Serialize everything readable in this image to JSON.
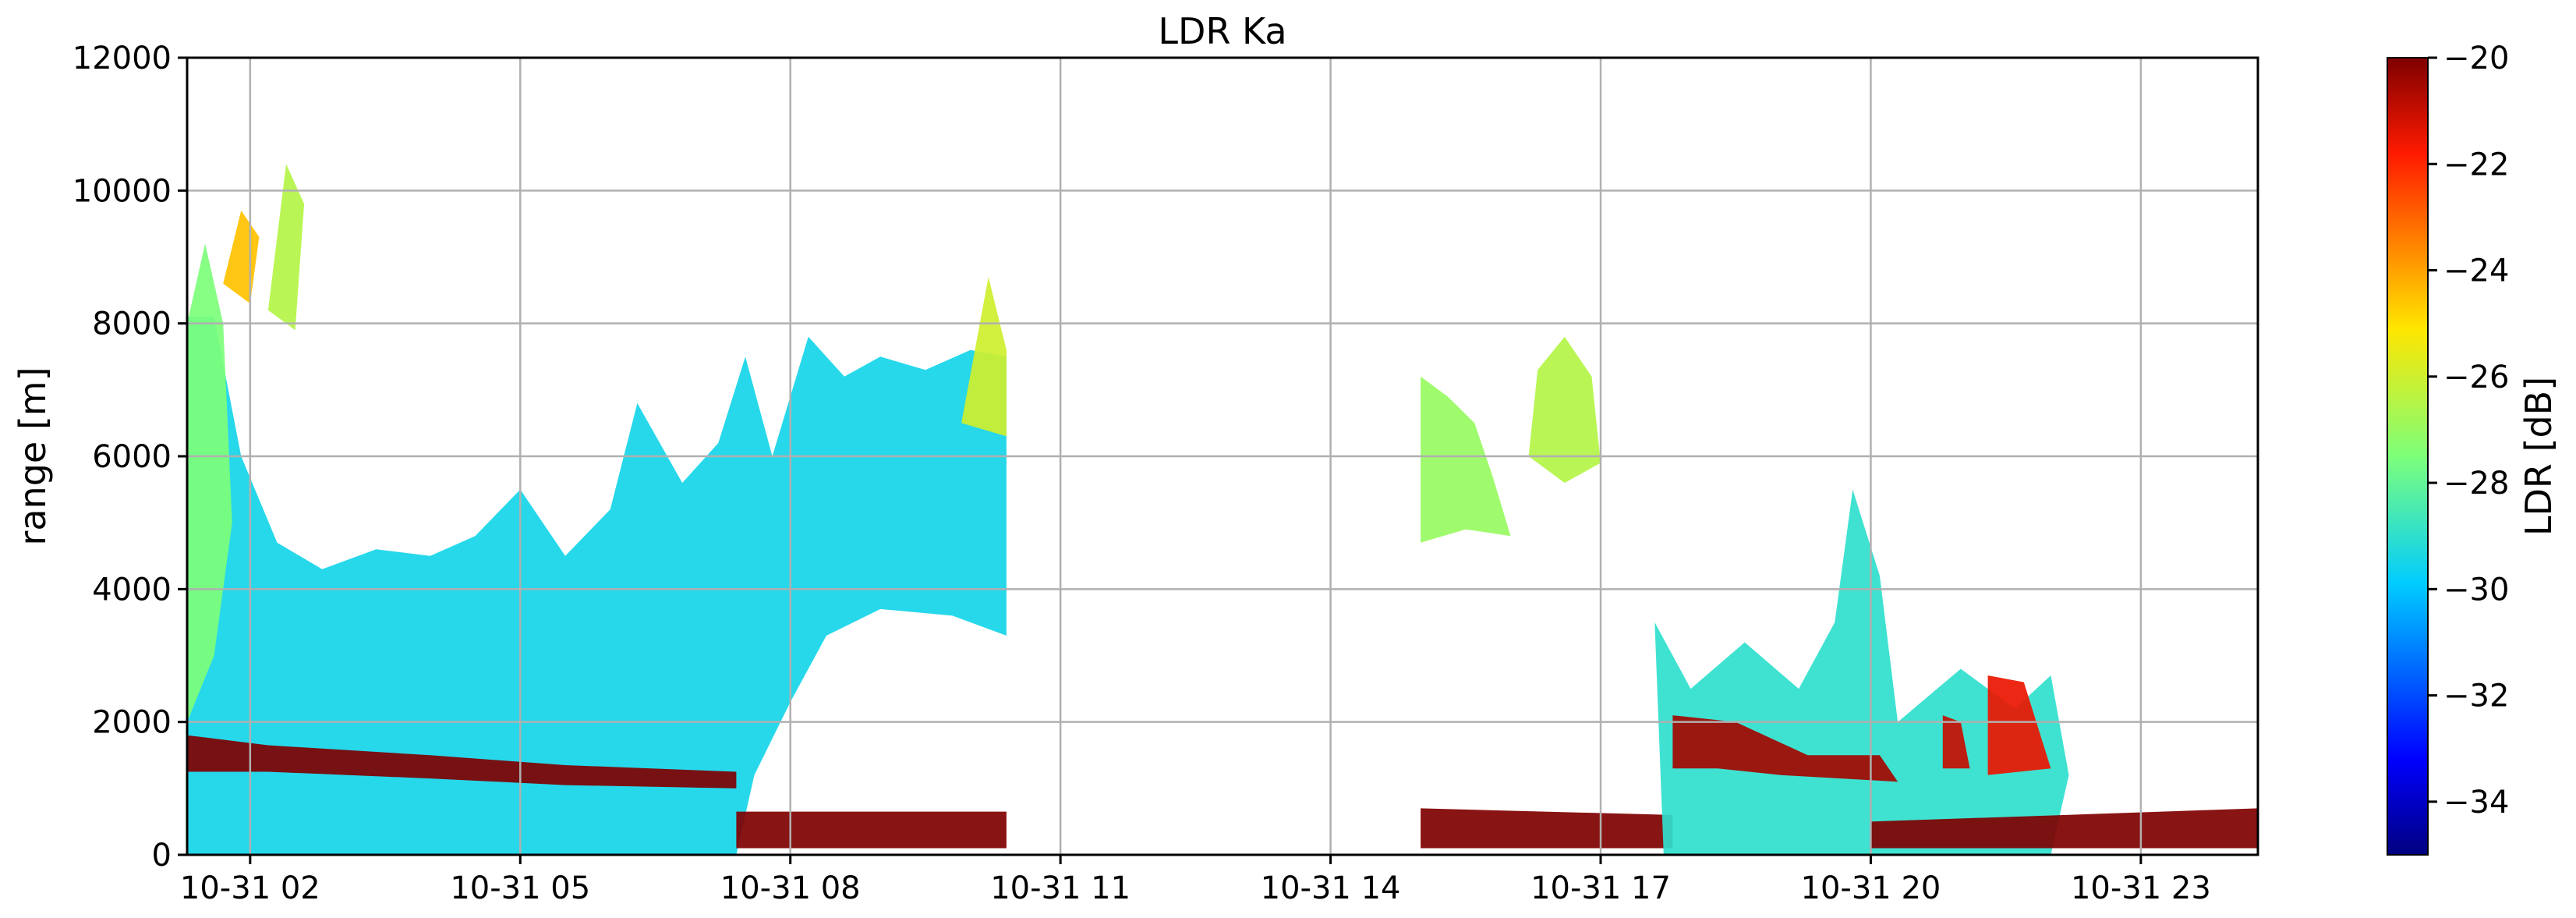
{
  "chart_data": {
    "type": "heatmap",
    "title": "LDR Ka",
    "xlabel": "",
    "ylabel": "range [m]",
    "colorbar_label": "LDR [dB]",
    "colormap": "jet",
    "clim": [
      -35,
      -20
    ],
    "grid": true,
    "x_unit": "hours of day 2020-10-31",
    "xlim": [
      1.3,
      24.3
    ],
    "ylim": [
      0,
      12000
    ],
    "x_ticks": [
      {
        "value": 2,
        "label": "10-31 02"
      },
      {
        "value": 5,
        "label": "10-31 05"
      },
      {
        "value": 8,
        "label": "10-31 08"
      },
      {
        "value": 11,
        "label": "10-31 11"
      },
      {
        "value": 14,
        "label": "10-31 14"
      },
      {
        "value": 17,
        "label": "10-31 17"
      },
      {
        "value": 20,
        "label": "10-31 20"
      },
      {
        "value": 23,
        "label": "10-31 23"
      }
    ],
    "y_ticks": [
      0,
      2000,
      4000,
      6000,
      8000,
      10000,
      12000
    ],
    "colorbar_ticks": [
      -20,
      -22,
      -24,
      -26,
      -28,
      -30,
      -32,
      -34
    ],
    "regions": [
      {
        "name": "main-cloud",
        "ldr": -29.5,
        "shape": [
          [
            1.3,
            0
          ],
          [
            1.3,
            8100
          ],
          [
            1.6,
            8100
          ],
          [
            1.9,
            6000
          ],
          [
            2.3,
            4700
          ],
          [
            2.8,
            4300
          ],
          [
            3.4,
            4600
          ],
          [
            4.0,
            4500
          ],
          [
            4.5,
            4800
          ],
          [
            5.0,
            5500
          ],
          [
            5.5,
            4500
          ],
          [
            6.0,
            5200
          ],
          [
            6.3,
            6800
          ],
          [
            6.8,
            5600
          ],
          [
            7.2,
            6200
          ],
          [
            7.5,
            7500
          ],
          [
            7.8,
            6000
          ],
          [
            8.2,
            7800
          ],
          [
            8.6,
            7200
          ],
          [
            9.0,
            7500
          ],
          [
            9.5,
            7300
          ],
          [
            10.0,
            7600
          ],
          [
            10.4,
            7500
          ],
          [
            10.4,
            3300
          ],
          [
            9.8,
            3600
          ],
          [
            9.0,
            3700
          ],
          [
            8.4,
            3300
          ],
          [
            8.0,
            2300
          ],
          [
            7.6,
            1200
          ],
          [
            7.4,
            0
          ]
        ]
      },
      {
        "name": "early-plume",
        "ldr": -27.5,
        "shape": [
          [
            1.3,
            2000
          ],
          [
            1.3,
            8000
          ],
          [
            1.5,
            9200
          ],
          [
            1.7,
            8000
          ],
          [
            1.8,
            5000
          ],
          [
            1.6,
            3000
          ]
        ]
      },
      {
        "name": "upper-cirrus-1",
        "ldr": -24.5,
        "shape": [
          [
            1.7,
            8600
          ],
          [
            1.9,
            9700
          ],
          [
            2.1,
            9300
          ],
          [
            2.0,
            8300
          ]
        ]
      },
      {
        "name": "upper-cirrus-2",
        "ldr": -26.5,
        "shape": [
          [
            2.2,
            8200
          ],
          [
            2.4,
            10400
          ],
          [
            2.6,
            9800
          ],
          [
            2.5,
            7900
          ]
        ]
      },
      {
        "name": "morning-streak",
        "ldr": -26,
        "shape": [
          [
            9.9,
            6500
          ],
          [
            10.2,
            8700
          ],
          [
            10.4,
            7600
          ],
          [
            10.4,
            6300
          ]
        ]
      },
      {
        "name": "melting-layer-west",
        "ldr": -20,
        "shape": [
          [
            1.3,
            1250
          ],
          [
            1.3,
            1800
          ],
          [
            2.2,
            1650
          ],
          [
            4.0,
            1500
          ],
          [
            5.5,
            1350
          ],
          [
            7.4,
            1250
          ],
          [
            7.4,
            1000
          ],
          [
            5.5,
            1050
          ],
          [
            4.0,
            1150
          ],
          [
            2.2,
            1250
          ]
        ]
      },
      {
        "name": "low-clutter-am",
        "ldr": -20,
        "shape": [
          [
            7.4,
            100
          ],
          [
            7.4,
            650
          ],
          [
            10.4,
            650
          ],
          [
            10.4,
            100
          ]
        ]
      },
      {
        "name": "afternoon-cloud-1",
        "ldr": -27,
        "shape": [
          [
            15.0,
            4700
          ],
          [
            15.0,
            7200
          ],
          [
            15.3,
            6900
          ],
          [
            15.6,
            6500
          ],
          [
            15.8,
            5700
          ],
          [
            16.0,
            4800
          ],
          [
            15.5,
            4900
          ]
        ]
      },
      {
        "name": "afternoon-cloud-2",
        "ldr": -26.5,
        "shape": [
          [
            16.2,
            6000
          ],
          [
            16.3,
            7300
          ],
          [
            16.6,
            7800
          ],
          [
            16.9,
            7200
          ],
          [
            17.0,
            5900
          ],
          [
            16.6,
            5600
          ]
        ]
      },
      {
        "name": "low-clutter-pm",
        "ldr": -20,
        "shape": [
          [
            15.0,
            100
          ],
          [
            15.0,
            700
          ],
          [
            17.8,
            600
          ],
          [
            17.8,
            100
          ]
        ]
      },
      {
        "name": "evening-cloud",
        "ldr": -29,
        "shape": [
          [
            17.7,
            0
          ],
          [
            17.6,
            3500
          ],
          [
            18.0,
            2500
          ],
          [
            18.6,
            3200
          ],
          [
            19.2,
            2500
          ],
          [
            19.6,
            3500
          ],
          [
            19.8,
            5500
          ],
          [
            20.1,
            4200
          ],
          [
            20.3,
            2000
          ],
          [
            21.0,
            2800
          ],
          [
            21.6,
            2200
          ],
          [
            22.0,
            2700
          ],
          [
            22.2,
            1200
          ],
          [
            22.0,
            0
          ]
        ]
      },
      {
        "name": "evening-bright-band",
        "ldr": -20.5,
        "shape": [
          [
            17.8,
            1300
          ],
          [
            17.8,
            2100
          ],
          [
            18.5,
            2000
          ],
          [
            19.3,
            1500
          ],
          [
            20.1,
            1500
          ],
          [
            20.3,
            1100
          ],
          [
            19.0,
            1200
          ],
          [
            18.3,
            1300
          ]
        ]
      },
      {
        "name": "late-patches",
        "ldr": -21,
        "shape": [
          [
            20.8,
            1300
          ],
          [
            20.8,
            2100
          ],
          [
            21.0,
            2000
          ],
          [
            21.1,
            1300
          ]
        ]
      },
      {
        "name": "late-patches-2",
        "ldr": -21.5,
        "shape": [
          [
            21.3,
            1200
          ],
          [
            21.3,
            2700
          ],
          [
            21.7,
            2600
          ],
          [
            22.0,
            1300
          ]
        ]
      },
      {
        "name": "night-clutter",
        "ldr": -20,
        "shape": [
          [
            20.0,
            100
          ],
          [
            20.0,
            500
          ],
          [
            24.3,
            700
          ],
          [
            24.3,
            100
          ]
        ]
      }
    ]
  }
}
